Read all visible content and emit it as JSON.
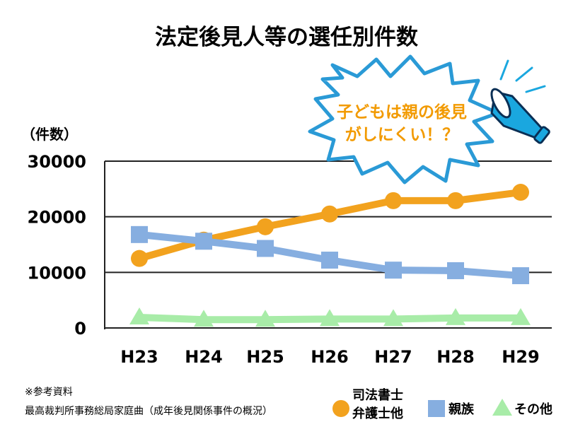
{
  "chart_data": {
    "type": "line",
    "title": "法定後見人等の選任別件数",
    "ylabel": "（件数）",
    "ylim": [
      0,
      30000
    ],
    "yticks": [
      "0",
      "10000",
      "20000",
      "30000"
    ],
    "categories": [
      "H23",
      "H24",
      "H25",
      "H26",
      "H27",
      "H28",
      "H29"
    ],
    "grid": true,
    "series": [
      {
        "name_lines": [
          "司法書士",
          "弁護士他"
        ],
        "marker": "circle",
        "color": "#f2a21e",
        "values": [
          12500,
          15800,
          18200,
          20500,
          22900,
          22900,
          24400
        ]
      },
      {
        "name_lines": [
          "親族"
        ],
        "marker": "square",
        "color": "#86aee0",
        "values": [
          16800,
          15600,
          14300,
          12200,
          10400,
          10300,
          9400
        ]
      },
      {
        "name_lines": [
          "その他"
        ],
        "marker": "triangle",
        "color": "#a8eca8",
        "values": [
          1900,
          1500,
          1500,
          1600,
          1600,
          1800,
          1800
        ]
      }
    ],
    "callout_lines": [
      "子どもは親の後見",
      "がしにくい！？"
    ],
    "source_lines": [
      "※参考資料",
      "最高裁判所事務総局家庭曲（成年後見関係事件の概況）"
    ],
    "legend_position": "bottom-right"
  }
}
